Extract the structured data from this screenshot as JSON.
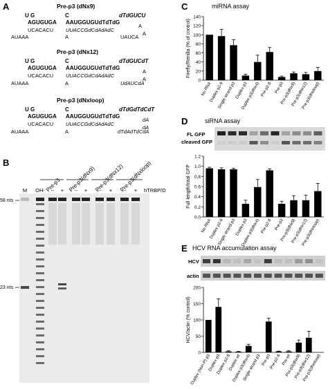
{
  "panels": {
    "A": {
      "letter": "A",
      "constructs": [
        {
          "title": "Pre-p3 (dNx9)",
          "line1_left": "U G",
          "line1_mid": "C",
          "line1_right": "dTdGUCU",
          "line2_left": "AGUGUGA",
          "line2_mid": "AAUGGUGUdTdTdG",
          "line2_right": "A",
          "line3_left": "UCACACU",
          "line3_mid": "UUACCGdCdAdAdC",
          "line3_right": "A",
          "line4_left": "AUAAA",
          "line4_mid": "A",
          "line4_right": "UAUCA"
        },
        {
          "title": "Pre-p3 (dNx12)",
          "line1_left": "U G",
          "line1_mid": "C",
          "line1_right": "dTdGUCdT",
          "line2_left": "AGUGUGA",
          "line2_mid": "AAUGGUGUdTdTdG",
          "line2_right": "A",
          "line3_left": "UCACACU",
          "line3_mid": "UUACCGdCdAdAdC",
          "line3_right": "A",
          "line4_left": "AUAAA",
          "line4_mid": "A",
          "line4_right": "UdAUCdA"
        },
        {
          "title": "Pre-p3 (dNxloop)",
          "line1_left": "U G",
          "line1_mid": "C",
          "line1_right": "dTdGdTdCdT",
          "line2_left": "AGUGUGA",
          "line2_mid": "AAUGGUGUdTdTdG",
          "line2_right": "dA",
          "line3_left": "UCACACU",
          "line3_mid": "UUACCGdCdAdAdC",
          "line3_right": "dA",
          "line4_left": "AUAAA",
          "line4_mid": "A",
          "line4_right": "dTdAdTdCdA"
        }
      ]
    },
    "B": {
      "letter": "B",
      "lane_groups": [
        "Pre-p3",
        "Pre-p3(dNx9)",
        "Pre-p3(dNx12)",
        "Pre-p3(dNxloop)"
      ],
      "lane_marks": [
        "M",
        "OH-",
        "--",
        "+",
        "--",
        "+",
        "--",
        "+",
        "--",
        "+"
      ],
      "treatment_label": "hTRBP/Dicer",
      "size_markers": [
        "58 nts",
        "23 nts"
      ]
    },
    "C": {
      "letter": "C",
      "title": "miRNA assay"
    },
    "D": {
      "letter": "D",
      "title": "siRNA assay",
      "blot_labels": [
        "FL GFP",
        "cleaved GFP"
      ]
    },
    "E": {
      "letter": "E",
      "title": "HCV RNA accumulation assay",
      "blot_labels": [
        "HCV",
        "actin"
      ]
    }
  },
  "chart_data": [
    {
      "type": "bar",
      "panel": "C",
      "title": "miRNA assay",
      "ylabel": "Firefly/Renilla (% of control)",
      "xlabel": "",
      "ylim": [
        0,
        140
      ],
      "yticks": [
        0,
        20,
        40,
        60,
        80,
        100,
        120,
        140
      ],
      "categories": [
        "No RNA",
        "Duplex p2-8",
        "Single strand p3",
        "Duplex p3",
        "Duplex p3(dNx4)",
        "Pre-p2-8",
        "Pre-p3",
        "Pre-p3(dNx9)",
        "Pre-p3(dNx12)",
        "Pre-p3(dNxloop)"
      ],
      "values": [
        100,
        97,
        77,
        10,
        40,
        62,
        7,
        15,
        13,
        20
      ],
      "errors": [
        0,
        15,
        12,
        3,
        15,
        10,
        2,
        3,
        4,
        8
      ],
      "bar_color": "#000000"
    },
    {
      "type": "bar",
      "panel": "D",
      "title": "siRNA assay",
      "ylabel": "Full length/total GFP",
      "xlabel": "",
      "ylim": [
        0,
        1.2
      ],
      "yticks": [
        0,
        0.2,
        0.4,
        0.6,
        0.8,
        1.0,
        1.2
      ],
      "categories": [
        "No RNA",
        "Duplex p2-8",
        "Single strand p3",
        "Duplex p3",
        "Duplex p3(dNx4)",
        "Pre-p2-8",
        "Pre-p3",
        "Pre-p3(dNx9)",
        "Pre-p3(dNx12)",
        "Pre-p3(dNxloop)"
      ],
      "values": [
        0.96,
        0.94,
        0.94,
        0.26,
        0.59,
        0.92,
        0.26,
        0.33,
        0.33,
        0.51
      ],
      "errors": [
        0.02,
        0.03,
        0.02,
        0.07,
        0.15,
        0.03,
        0.05,
        0.09,
        0.1,
        0.15
      ],
      "bar_color": "#000000"
    },
    {
      "type": "bar",
      "panel": "E",
      "title": "HCV RNA accumulation assay",
      "ylabel": "HCV/actin (% control)",
      "xlabel": "",
      "ylim": [
        0,
        200
      ],
      "yticks": [
        0,
        50,
        100,
        150,
        200
      ],
      "categories": [
        "Duplex (Non-P) p3",
        "Duplex p3",
        "Duplex p2-8",
        "Duplex wt",
        "Duplex p3(dNx4)",
        "Single strand p3",
        "Pre-p3",
        "Pre-p2-8",
        "Pre-wt",
        "Pre-p3(dNx9)",
        "Pre-p3(dNx12)",
        "Pre-p3(dNxloop)"
      ],
      "values": [
        100,
        140,
        3,
        2,
        20,
        0,
        95,
        3,
        3,
        30,
        45,
        0
      ],
      "errors": [
        0,
        25,
        2,
        1,
        5,
        0,
        10,
        1,
        2,
        8,
        20,
        0
      ],
      "bar_color": "#000000"
    }
  ]
}
